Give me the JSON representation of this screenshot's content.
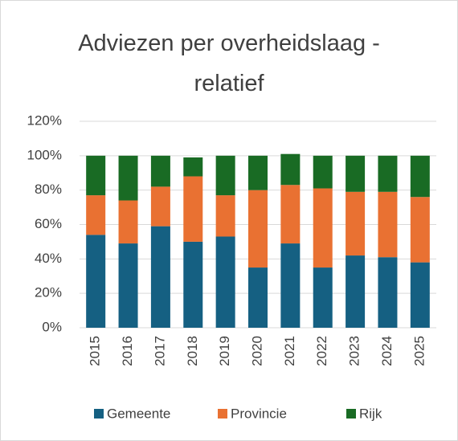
{
  "chart_data": {
    "type": "stacked_bar",
    "title": "Adviezen per overheidslaag - relatief",
    "categories": [
      "2015",
      "2016",
      "2017",
      "2018",
      "2019",
      "2020",
      "2021",
      "2022",
      "2023",
      "2024",
      "2025"
    ],
    "series": [
      {
        "name": "Gemeente",
        "color": "#156082",
        "values": [
          54,
          49,
          59,
          50,
          53,
          35,
          49,
          35,
          42,
          41,
          38
        ]
      },
      {
        "name": "Provincie",
        "color": "#e97132",
        "values": [
          23,
          25,
          23,
          38,
          24,
          45,
          34,
          46,
          37,
          38,
          38
        ]
      },
      {
        "name": "Rijk",
        "color": "#196b24",
        "values": [
          23,
          26,
          18,
          11,
          23,
          20,
          18,
          19,
          21,
          21,
          24
        ]
      }
    ],
    "ylim": [
      0,
      120
    ],
    "yticks": [
      {
        "value": 0,
        "label": "0%"
      },
      {
        "value": 20,
        "label": "20%"
      },
      {
        "value": 40,
        "label": "40%"
      },
      {
        "value": 60,
        "label": "60%"
      },
      {
        "value": 80,
        "label": "80%"
      },
      {
        "value": 100,
        "label": "100%"
      },
      {
        "value": 120,
        "label": "120%"
      }
    ],
    "grid": true,
    "legend": "bottom"
  }
}
